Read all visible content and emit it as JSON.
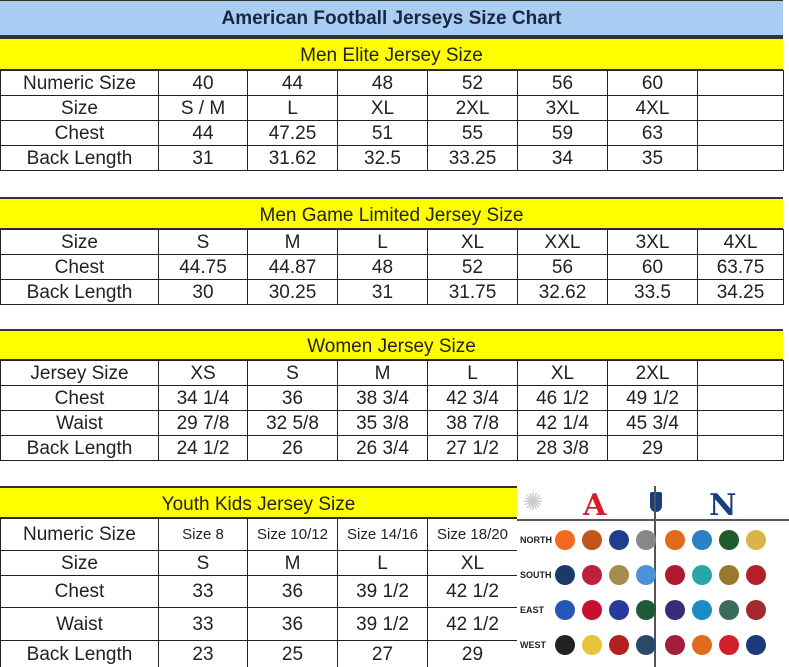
{
  "title": "American Football Jerseys Size Chart",
  "colors": {
    "title_bg": "#a9cdf3",
    "band_bg": "#ffff00",
    "afc": "#d41f2b",
    "nfc": "#1a3f80"
  },
  "tables": [
    {
      "heading": "Men Elite Jersey Size",
      "rows": [
        [
          "Numeric Size",
          "40",
          "44",
          "48",
          "52",
          "56",
          "60",
          ""
        ],
        [
          "Size",
          "S / M",
          "L",
          "XL",
          "2XL",
          "3XL",
          "4XL",
          ""
        ],
        [
          "Chest",
          "44",
          "47.25",
          "51",
          "55",
          "59",
          "63",
          ""
        ],
        [
          "Back Length",
          "31",
          "31.62",
          "32.5",
          "33.25",
          "34",
          "35",
          ""
        ]
      ]
    },
    {
      "heading": "Men Game Limited Jersey Size",
      "rows": [
        [
          "Size",
          "S",
          "M",
          "L",
          "XL",
          "XXL",
          "3XL",
          "4XL"
        ],
        [
          "Chest",
          "44.75",
          "44.87",
          "48",
          "52",
          "56",
          "60",
          "63.75"
        ],
        [
          "Back Length",
          "30",
          "30.25",
          "31",
          "31.75",
          "32.62",
          "33.5",
          "34.25"
        ]
      ]
    },
    {
      "heading": "Women Jersey Size",
      "rows": [
        [
          "Jersey Size",
          "XS",
          "S",
          "M",
          "L",
          "XL",
          "2XL",
          ""
        ],
        [
          "Chest",
          "34 1/4",
          "36",
          "38 3/4",
          "42 3/4",
          "46 1/2",
          "49 1/2",
          ""
        ],
        [
          "Waist",
          "29 7/8",
          "32 5/8",
          "35 3/8",
          "38 7/8",
          "42 1/4",
          "45 3/4",
          ""
        ],
        [
          "Back Length",
          "24 1/2",
          "26",
          "26 3/4",
          "27 1/2",
          "28 3/8",
          "29",
          ""
        ]
      ]
    },
    {
      "heading": "Youth Kids Jersey Size",
      "rows": [
        [
          "Numeric Size",
          "Size 8",
          "Size 10/12",
          "Size 14/16",
          "Size 18/20"
        ],
        [
          "Size",
          "S",
          "M",
          "L",
          "XL"
        ],
        [
          "Chest",
          "33",
          "36",
          "39 1/2",
          "42 1/2"
        ],
        [
          "Waist",
          "33",
          "36",
          "39 1/2",
          "42 1/2"
        ],
        [
          "Back Length",
          "23",
          "25",
          "27",
          "29"
        ]
      ]
    }
  ],
  "logos": {
    "afc": "A",
    "nfc": "N",
    "divisions": [
      {
        "label": "NORTH",
        "afc": [
          {
            "icon": "bengals-logo",
            "color": "#f26a21"
          },
          {
            "icon": "browns-logo",
            "color": "#c2531a"
          },
          {
            "icon": "colts-logo",
            "color": "#1f3f8c"
          },
          {
            "icon": "steelers-logo",
            "color": "#888888"
          }
        ],
        "nfc": [
          {
            "icon": "bears-logo",
            "color": "#e0691a"
          },
          {
            "icon": "lions-logo",
            "color": "#2c80c4"
          },
          {
            "icon": "packers-logo",
            "color": "#1f5a2c"
          },
          {
            "icon": "vikings-logo",
            "color": "#d8b44a"
          }
        ]
      },
      {
        "label": "SOUTH",
        "afc": [
          {
            "icon": "cowboys-logo",
            "color": "#1b3a6b"
          },
          {
            "icon": "texans-logo",
            "color": "#c1203b"
          },
          {
            "icon": "saints-logo",
            "color": "#a68b4f"
          },
          {
            "icon": "titans-logo",
            "color": "#4b92db"
          }
        ],
        "nfc": [
          {
            "icon": "falcons-logo",
            "color": "#b0182f"
          },
          {
            "icon": "dolphins-logo",
            "color": "#2aa6a8"
          },
          {
            "icon": "jaguars-logo",
            "color": "#9a7a2a"
          },
          {
            "icon": "buccaneers-logo",
            "color": "#b4202a"
          }
        ]
      },
      {
        "label": "EAST",
        "afc": [
          {
            "icon": "bills-logo",
            "color": "#2457b8"
          },
          {
            "icon": "patriots-logo",
            "color": "#c8102e"
          },
          {
            "icon": "giants-logo",
            "color": "#2a3a9c"
          },
          {
            "icon": "jets-logo",
            "color": "#1e5a3a"
          }
        ],
        "nfc": [
          {
            "icon": "ravens-logo",
            "color": "#3a2a7a"
          },
          {
            "icon": "panthers-logo",
            "color": "#1a8cc8"
          },
          {
            "icon": "eagles-logo",
            "color": "#3c6a5a"
          },
          {
            "icon": "redskins-logo",
            "color": "#a02a2a"
          }
        ]
      },
      {
        "label": "WEST",
        "afc": [
          {
            "icon": "raiders-logo",
            "color": "#222222"
          },
          {
            "icon": "chargers-logo",
            "color": "#e8c23a"
          },
          {
            "icon": "49ers-logo",
            "color": "#b2201f"
          },
          {
            "icon": "seahawks-logo",
            "color": "#2a4a6a"
          }
        ],
        "nfc": [
          {
            "icon": "cardinals-logo",
            "color": "#a41d3a"
          },
          {
            "icon": "broncos-logo",
            "color": "#e06a1a"
          },
          {
            "icon": "chiefs-logo",
            "color": "#d21f2a"
          },
          {
            "icon": "rams-logo",
            "color": "#1a3a7a"
          }
        ]
      }
    ]
  }
}
